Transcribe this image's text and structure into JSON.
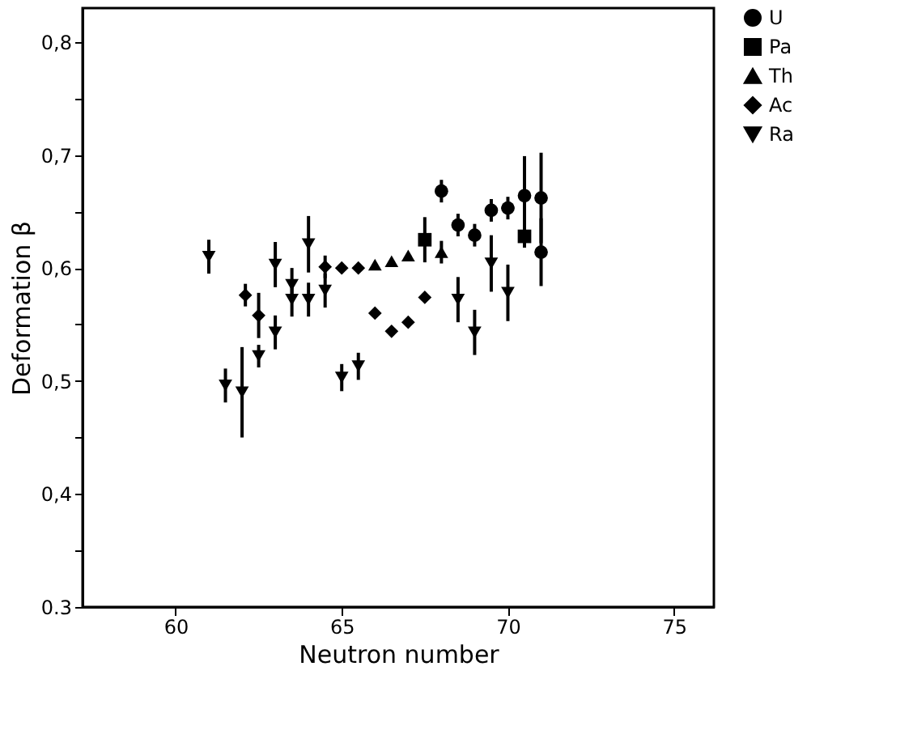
{
  "chart_data": {
    "type": "scatter",
    "xlabel": "Neutron number",
    "ylabel": "Deformation β",
    "xlim": [
      57.2,
      76.2
    ],
    "ylim": [
      0.3,
      0.83
    ],
    "xticks": [
      60,
      65,
      70,
      75
    ],
    "yticks": [
      {
        "value": 0.3,
        "label": "0.3"
      },
      {
        "value": 0.35,
        "label": null
      },
      {
        "value": 0.4,
        "label": "0,4"
      },
      {
        "value": 0.45,
        "label": null
      },
      {
        "value": 0.5,
        "label": "0,5"
      },
      {
        "value": 0.55,
        "label": null
      },
      {
        "value": 0.6,
        "label": "0,6"
      },
      {
        "value": 0.65,
        "label": null
      },
      {
        "value": 0.7,
        "label": "0,7"
      },
      {
        "value": 0.75,
        "label": null
      },
      {
        "value": 0.8,
        "label": "0,8"
      }
    ],
    "grid": false,
    "legend": "right",
    "series": [
      {
        "name": "U",
        "color": "#000000",
        "marker": "circle",
        "x": [
          68.0,
          68.5,
          69.0,
          69.5,
          70.0,
          70.5,
          71.0,
          71.0
        ],
        "values": [
          0.668,
          0.638,
          0.629,
          0.651,
          0.653,
          0.664,
          0.662,
          0.614
        ],
        "errors": [
          0.01,
          0.01,
          0.01,
          0.01,
          0.01,
          0.035,
          0.04,
          0.03
        ]
      },
      {
        "name": "Pa",
        "color": "#000000",
        "marker": "square",
        "x": [
          67.5,
          70.5
        ],
        "values": [
          0.625,
          0.628
        ],
        "errors": [
          0.02,
          0.01
        ]
      },
      {
        "name": "Th",
        "color": "#000000",
        "marker": "triangle",
        "x": [
          66.0,
          66.5,
          67.0,
          68.0
        ],
        "values": [
          0.603,
          0.606,
          0.611,
          0.614
        ],
        "errors": [
          null,
          null,
          null,
          0.01
        ]
      },
      {
        "name": "Ac",
        "color": "#000000",
        "marker": "diamond",
        "x": [
          62.1,
          62.5,
          64.5,
          65.0,
          65.5,
          66.0,
          66.5,
          67.0,
          67.5
        ],
        "values": [
          0.576,
          0.558,
          0.601,
          0.6,
          0.6,
          0.56,
          0.544,
          0.552,
          0.574
        ],
        "errors": [
          0.01,
          0.02,
          0.01,
          null,
          null,
          null,
          null,
          null,
          null
        ]
      },
      {
        "name": "Ra",
        "color": "#000000",
        "marker": "triangle-down",
        "x": [
          61.0,
          61.5,
          62.0,
          62.5,
          63.0,
          63.0,
          63.5,
          63.5,
          64.0,
          64.0,
          64.5,
          65.0,
          65.5,
          68.5,
          69.0,
          69.5,
          70.0
        ],
        "values": [
          0.61,
          0.496,
          0.49,
          0.522,
          0.603,
          0.543,
          0.585,
          0.572,
          0.621,
          0.572,
          0.58,
          0.503,
          0.513,
          0.572,
          0.543,
          0.604,
          0.578
        ],
        "errors": [
          0.015,
          0.015,
          0.04,
          0.01,
          0.02,
          0.015,
          0.015,
          0.015,
          0.025,
          0.015,
          0.015,
          0.012,
          0.012,
          0.02,
          0.02,
          0.025,
          0.025
        ]
      }
    ]
  }
}
